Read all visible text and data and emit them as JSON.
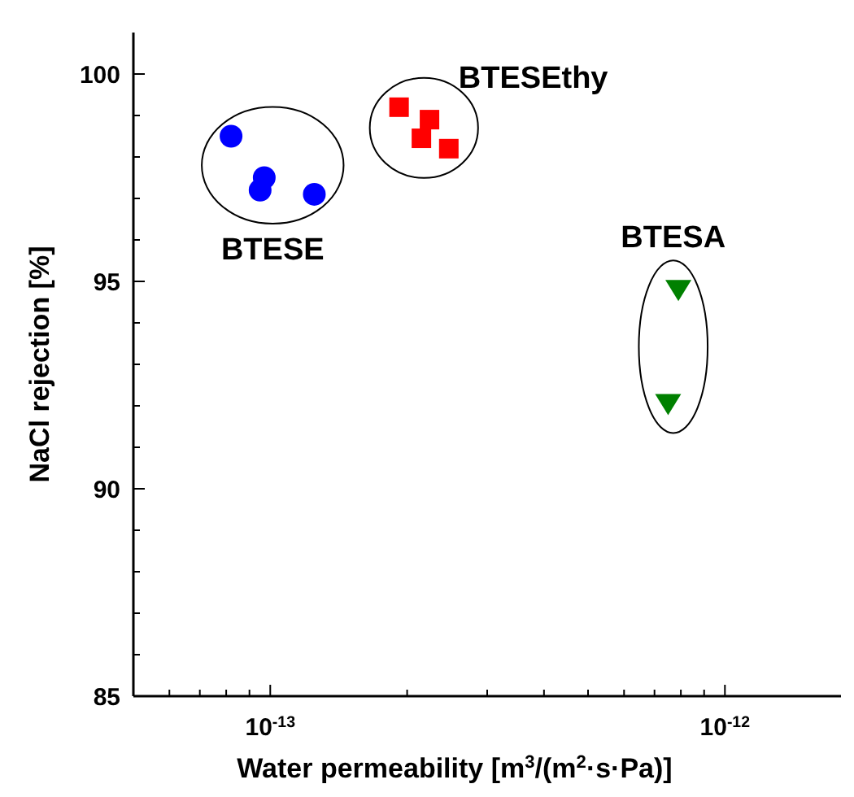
{
  "chart_data": {
    "type": "scatter",
    "xlabel": "Water permeability [m$^{3}$/(m$^{2}$·s·Pa)]",
    "ylabel": "NaCl rejection [%]",
    "log": "x",
    "xlim": [
      5e-14,
      1.8e-12
    ],
    "ylim": [
      85,
      101
    ],
    "xticks": [
      {
        "value": 6e-14,
        "label": null
      },
      {
        "value": 7e-14,
        "label": null
      },
      {
        "value": 8e-14,
        "label": null
      },
      {
        "value": 9e-14,
        "label": null
      },
      {
        "value": 1e-13,
        "label": "10$^{-13}$"
      },
      {
        "value": 2e-13,
        "label": null
      },
      {
        "value": 3e-13,
        "label": null
      },
      {
        "value": 4e-13,
        "label": null
      },
      {
        "value": 5e-13,
        "label": null
      },
      {
        "value": 6e-13,
        "label": null
      },
      {
        "value": 7e-13,
        "label": null
      },
      {
        "value": 8e-13,
        "label": null
      },
      {
        "value": 9e-13,
        "label": null
      },
      {
        "value": 1e-12,
        "label": "10$^{-12}$"
      }
    ],
    "yticks": [
      85,
      {
        "value": 86,
        "label": null
      },
      {
        "value": 87,
        "label": null
      },
      {
        "value": 88,
        "label": null
      },
      {
        "value": 89,
        "label": null
      },
      90,
      {
        "value": 91,
        "label": null
      },
      {
        "value": 92,
        "label": null
      },
      {
        "value": 93,
        "label": null
      },
      {
        "value": 94,
        "label": null
      },
      95,
      {
        "value": 96,
        "label": null
      },
      {
        "value": 97,
        "label": null
      },
      {
        "value": 98,
        "label": null
      },
      {
        "value": 99,
        "label": null
      },
      100
    ],
    "series": [
      {
        "name": "BTESE",
        "color": "#0000ff",
        "marker": "circle",
        "x": [
          8.2e-14,
          9.7e-14,
          9.5e-14,
          1.25e-13
        ],
        "values": [
          98.5,
          97.5,
          97.2,
          97.1
        ]
      },
      {
        "name": "BTESEthy",
        "color": "#ff0000",
        "marker": "square",
        "x": [
          1.92e-13,
          2.24e-13,
          2.15e-13,
          2.47e-13
        ],
        "values": [
          99.2,
          98.9,
          98.45,
          98.2
        ]
      },
      {
        "name": "BTESA",
        "color": "#008000",
        "marker": "triangle",
        "x": [
          7.9e-13,
          7.5e-13
        ],
        "values": [
          94.8,
          92.05
        ]
      }
    ]
  }
}
